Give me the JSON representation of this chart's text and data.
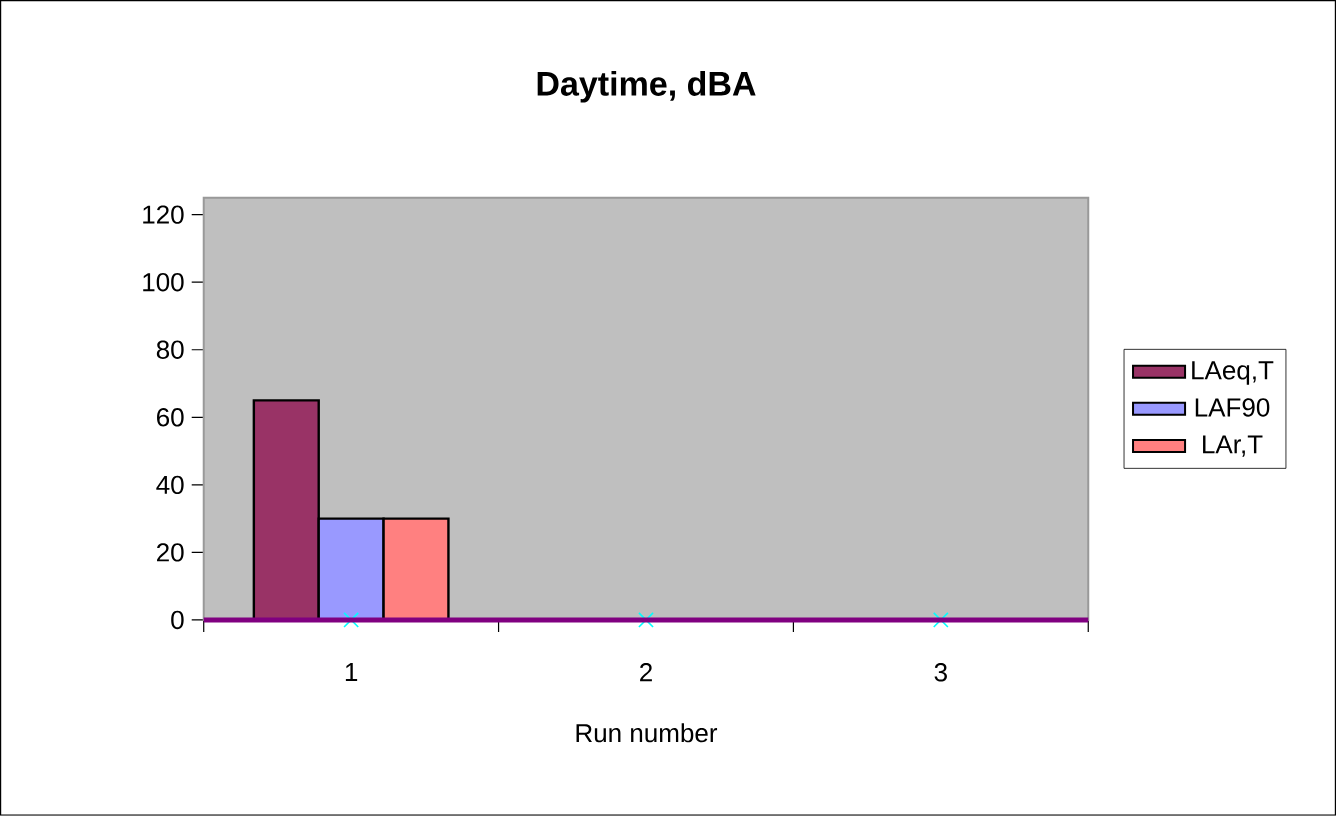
{
  "chart_data": {
    "type": "bar",
    "title": "Daytime, dBA",
    "xlabel": "Run number",
    "categories": [
      "1",
      "2",
      "3"
    ],
    "series": [
      {
        "name": "LAeq,T",
        "color": "#993366",
        "values": [
          65,
          null,
          null
        ]
      },
      {
        "name": "LAF90",
        "color": "#9999ff",
        "values": [
          30,
          null,
          null
        ]
      },
      {
        "name": "LAr,T",
        "color": "#ff8080",
        "values": [
          30,
          null,
          null
        ]
      },
      {
        "type": "scatter",
        "marker": "cross",
        "color": "#00ffff",
        "values": [
          0,
          0,
          0
        ]
      }
    ],
    "ylim": [
      0,
      125
    ],
    "yticks": [
      0,
      20,
      40,
      60,
      80,
      100,
      120
    ],
    "legend": "right"
  }
}
